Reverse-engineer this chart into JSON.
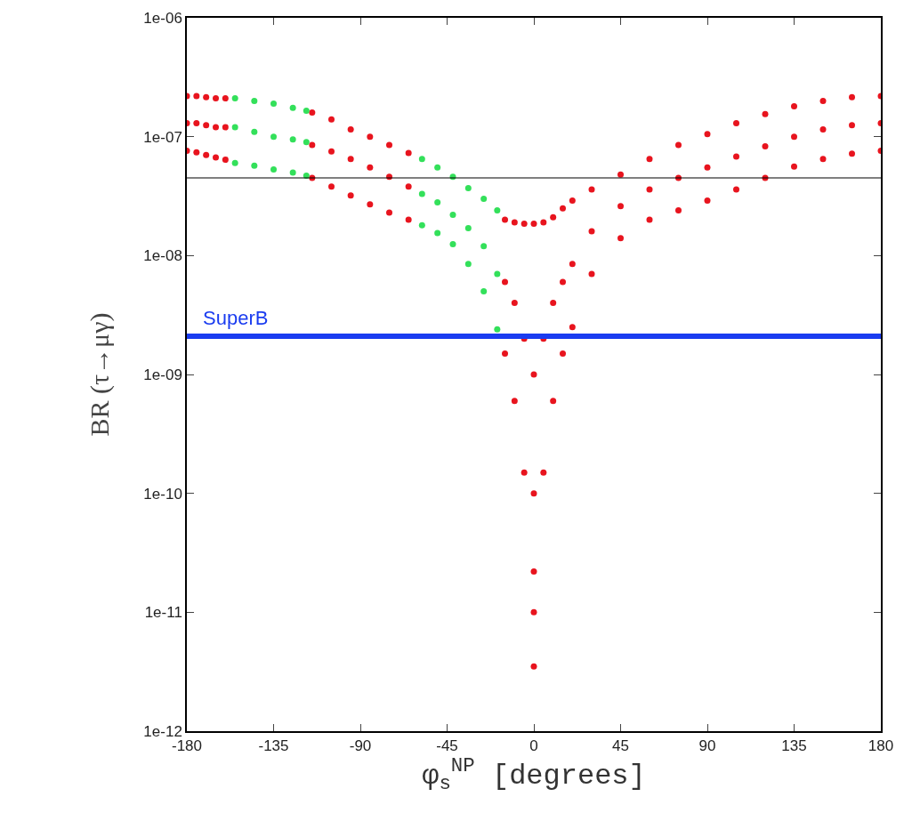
{
  "chart_data": {
    "type": "scatter",
    "xlabel": "φ$_{s}$$^{NP}$ [degrees]",
    "ylabel": "BR (τ→μγ)",
    "xlim": [
      -180,
      180
    ],
    "xticks": [
      -180,
      -135,
      -90,
      -45,
      0,
      45,
      90,
      135,
      180
    ],
    "ylim": [
      1e-12,
      1e-06
    ],
    "yticks": [
      {
        "value": 1e-12,
        "label": "1e-12"
      },
      {
        "value": 1e-11,
        "label": "1e-11"
      },
      {
        "value": 1e-10,
        "label": "1e-10"
      },
      {
        "value": 1e-09,
        "label": "1e-09"
      },
      {
        "value": 1e-08,
        "label": "1e-08"
      },
      {
        "value": 1e-07,
        "label": "1e-07"
      },
      {
        "value": 1e-06,
        "label": "1e-06"
      }
    ],
    "log": "y",
    "grid": false,
    "marker": "circle",
    "series": [
      {
        "color": "#e8141e",
        "x": [
          -180,
          -175,
          -170,
          -165,
          -160,
          -180,
          -175,
          -170,
          -165,
          -160,
          -180,
          -175,
          -170,
          -165,
          -160,
          -115,
          -105,
          -95,
          -85,
          -75,
          -65,
          -115,
          -105,
          -95,
          -85,
          -75,
          -65,
          -115,
          -105,
          -95,
          -85,
          -75,
          -65,
          -15,
          -10,
          -5,
          0,
          5,
          10,
          15,
          -15,
          -10,
          -5,
          0,
          5,
          10,
          15,
          -15,
          -10,
          -5,
          0,
          5,
          10,
          15,
          0,
          0,
          0,
          20,
          30,
          45,
          60,
          75,
          90,
          105,
          120,
          135,
          150,
          165,
          180,
          20,
          30,
          45,
          60,
          75,
          90,
          105,
          120,
          135,
          150,
          165,
          180,
          20,
          30,
          45,
          60,
          75,
          90,
          105,
          120,
          135,
          150,
          165,
          180
        ],
        "values": [
          2.2e-07,
          2.2e-07,
          2.15e-07,
          2.1e-07,
          2.1e-07,
          1.3e-07,
          1.3e-07,
          1.25e-07,
          1.2e-07,
          1.2e-07,
          7.6e-08,
          7.4e-08,
          7e-08,
          6.7e-08,
          6.4e-08,
          1.6e-07,
          1.4e-07,
          1.15e-07,
          1e-07,
          8.5e-08,
          7.3e-08,
          8.5e-08,
          7.5e-08,
          6.5e-08,
          5.5e-08,
          4.6e-08,
          3.8e-08,
          4.5e-08,
          3.8e-08,
          3.2e-08,
          2.7e-08,
          2.3e-08,
          2e-08,
          2e-08,
          1.9e-08,
          1.85e-08,
          1.85e-08,
          1.9e-08,
          2.1e-08,
          2.5e-08,
          6e-09,
          4e-09,
          2e-09,
          1e-09,
          2e-09,
          4e-09,
          6e-09,
          1.5e-09,
          6e-10,
          1.5e-10,
          3.5e-12,
          1.5e-10,
          6e-10,
          1.5e-09,
          1e-11,
          2.2e-11,
          1e-10,
          2.9e-08,
          3.6e-08,
          4.8e-08,
          6.5e-08,
          8.5e-08,
          1.05e-07,
          1.3e-07,
          1.55e-07,
          1.8e-07,
          2e-07,
          2.15e-07,
          2.2e-07,
          8.5e-09,
          1.6e-08,
          2.6e-08,
          3.6e-08,
          4.5e-08,
          5.5e-08,
          6.8e-08,
          8.3e-08,
          1e-07,
          1.15e-07,
          1.25e-07,
          1.3e-07,
          2.5e-09,
          7e-09,
          1.4e-08,
          2e-08,
          2.4e-08,
          2.9e-08,
          3.6e-08,
          4.5e-08,
          5.6e-08,
          6.5e-08,
          7.2e-08,
          7.6e-08
        ]
      },
      {
        "color": "#33e05a",
        "x": [
          -155,
          -145,
          -135,
          -125,
          -118,
          -155,
          -145,
          -135,
          -125,
          -118,
          -155,
          -145,
          -135,
          -125,
          -118,
          -58,
          -50,
          -42,
          -34,
          -26,
          -19,
          -58,
          -50,
          -42,
          -34,
          -26,
          -19,
          -58,
          -50,
          -42,
          -34,
          -26,
          -19
        ],
        "values": [
          2.1e-07,
          2e-07,
          1.9e-07,
          1.75e-07,
          1.65e-07,
          1.2e-07,
          1.1e-07,
          1e-07,
          9.5e-08,
          9e-08,
          6e-08,
          5.7e-08,
          5.3e-08,
          5e-08,
          4.7e-08,
          6.5e-08,
          5.5e-08,
          4.6e-08,
          3.7e-08,
          3e-08,
          2.4e-08,
          3.3e-08,
          2.8e-08,
          2.2e-08,
          1.7e-08,
          1.2e-08,
          7e-09,
          1.8e-08,
          1.55e-08,
          1.25e-08,
          8.5e-09,
          5e-09,
          2.4e-09
        ]
      }
    ],
    "ref_lines": [
      {
        "axis": "y",
        "value": 4.5e-08,
        "color": "#000000"
      },
      {
        "axis": "y",
        "value": 2.1e-09,
        "label": "SuperB",
        "color": "#1a3cf0"
      }
    ]
  }
}
